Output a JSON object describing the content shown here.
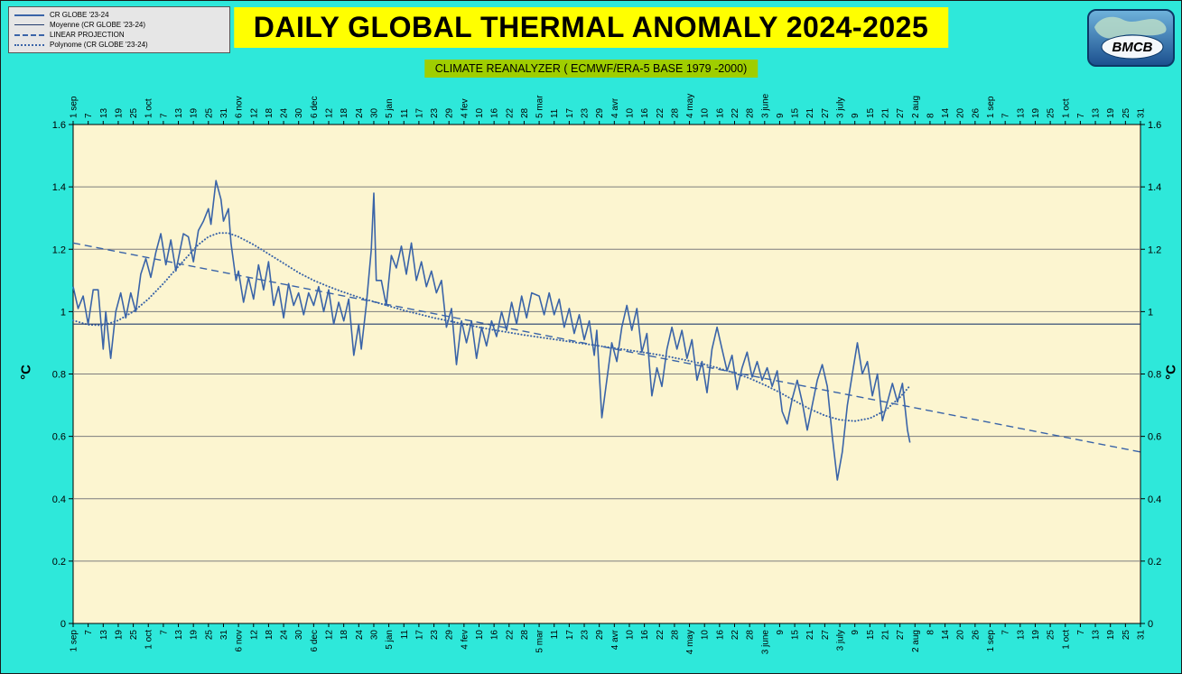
{
  "logo": {
    "text": "BMCB"
  },
  "colors": {
    "page_bg": "#2EE8DA",
    "plot_bg": "#FCF5D0",
    "title_bg": "#FFFF00",
    "subtitle_bg": "#9FCE00",
    "legend_bg": "#E6E6E6",
    "line_blue": "#3A64A8",
    "mean_blue": "#223C6E",
    "grid_gray": "#7D7D7D"
  },
  "chart_data": {
    "type": "line",
    "title": "DAILY GLOBAL THERMAL ANOMALY 2024-2025",
    "subtitle": "CLIMATE REANALYZER ( ECMWF/ERA-5 BASE 1979 -2000)",
    "ylabel_left": "°C",
    "ylabel_right": "°C",
    "ylim": [
      0,
      1.6
    ],
    "ytick_step": 0.2,
    "ytick_labels": [
      "0",
      "0.2",
      "0.4",
      "0.6",
      "0.8",
      "1",
      "1.2",
      "1.4",
      "1.6"
    ],
    "grid": "horizontal-only",
    "legend_position": "top-left",
    "plot_bg": "#FCF5D0",
    "x_unit": "days, 6 days per tick starting 1 sep",
    "xlim_days": [
      0,
      426
    ],
    "xtick_spacing_days": 6,
    "xtick_labels": [
      "1 sep",
      "7",
      "13",
      "19",
      "25",
      "1 oct",
      "7",
      "13",
      "19",
      "25",
      "31",
      "6 nov",
      "12",
      "18",
      "24",
      "30",
      "6 dec",
      "12",
      "18",
      "24",
      "30",
      "5 jan",
      "11",
      "17",
      "23",
      "29",
      "4 fev",
      "10",
      "16",
      "22",
      "28",
      "5 mar",
      "11",
      "17",
      "23",
      "29",
      "4 avr",
      "10",
      "16",
      "22",
      "28",
      "4 may",
      "10",
      "16",
      "22",
      "28",
      "3 june",
      "9",
      "15",
      "21",
      "27",
      "3 july",
      "9",
      "15",
      "21",
      "27",
      "2 aug",
      "8",
      "14",
      "20",
      "26",
      "1 sep",
      "7",
      "13",
      "19",
      "25",
      "1 oct",
      "7",
      "13",
      "19",
      "25",
      "31"
    ],
    "series": [
      {
        "name": "CR GLOBE '23-24",
        "style": "solid",
        "color": "#3A64A8",
        "width": 1.6,
        "points": [
          [
            0,
            1.08
          ],
          [
            2,
            1.01
          ],
          [
            4,
            1.05
          ],
          [
            6,
            0.96
          ],
          [
            8,
            1.07
          ],
          [
            10,
            1.07
          ],
          [
            12,
            0.88
          ],
          [
            13,
            1.0
          ],
          [
            15,
            0.85
          ],
          [
            17,
            1.0
          ],
          [
            19,
            1.06
          ],
          [
            21,
            0.98
          ],
          [
            23,
            1.06
          ],
          [
            25,
            1.0
          ],
          [
            27,
            1.12
          ],
          [
            29,
            1.17
          ],
          [
            31,
            1.11
          ],
          [
            33,
            1.19
          ],
          [
            35,
            1.25
          ],
          [
            37,
            1.15
          ],
          [
            39,
            1.23
          ],
          [
            41,
            1.13
          ],
          [
            44,
            1.25
          ],
          [
            46,
            1.24
          ],
          [
            48,
            1.16
          ],
          [
            50,
            1.26
          ],
          [
            52,
            1.29
          ],
          [
            54,
            1.33
          ],
          [
            55,
            1.28
          ],
          [
            57,
            1.42
          ],
          [
            59,
            1.36
          ],
          [
            60,
            1.29
          ],
          [
            62,
            1.33
          ],
          [
            63,
            1.22
          ],
          [
            65,
            1.1
          ],
          [
            66,
            1.13
          ],
          [
            68,
            1.03
          ],
          [
            70,
            1.11
          ],
          [
            72,
            1.04
          ],
          [
            74,
            1.15
          ],
          [
            76,
            1.07
          ],
          [
            78,
            1.16
          ],
          [
            80,
            1.02
          ],
          [
            82,
            1.08
          ],
          [
            84,
            0.98
          ],
          [
            86,
            1.09
          ],
          [
            88,
            1.02
          ],
          [
            90,
            1.06
          ],
          [
            92,
            0.99
          ],
          [
            94,
            1.06
          ],
          [
            96,
            1.02
          ],
          [
            98,
            1.08
          ],
          [
            100,
            1.0
          ],
          [
            102,
            1.07
          ],
          [
            104,
            0.96
          ],
          [
            106,
            1.03
          ],
          [
            108,
            0.97
          ],
          [
            110,
            1.04
          ],
          [
            112,
            0.86
          ],
          [
            114,
            0.96
          ],
          [
            115,
            0.88
          ],
          [
            117,
            1.02
          ],
          [
            119,
            1.2
          ],
          [
            120,
            1.38
          ],
          [
            121,
            1.1
          ],
          [
            123,
            1.1
          ],
          [
            125,
            1.02
          ],
          [
            127,
            1.18
          ],
          [
            129,
            1.14
          ],
          [
            131,
            1.21
          ],
          [
            133,
            1.12
          ],
          [
            135,
            1.22
          ],
          [
            137,
            1.1
          ],
          [
            139,
            1.16
          ],
          [
            141,
            1.08
          ],
          [
            143,
            1.13
          ],
          [
            145,
            1.06
          ],
          [
            147,
            1.1
          ],
          [
            149,
            0.95
          ],
          [
            151,
            1.01
          ],
          [
            153,
            0.83
          ],
          [
            155,
            0.97
          ],
          [
            157,
            0.9
          ],
          [
            159,
            0.97
          ],
          [
            161,
            0.85
          ],
          [
            163,
            0.95
          ],
          [
            165,
            0.89
          ],
          [
            167,
            0.97
          ],
          [
            169,
            0.92
          ],
          [
            171,
            1.0
          ],
          [
            173,
            0.94
          ],
          [
            175,
            1.03
          ],
          [
            177,
            0.96
          ],
          [
            179,
            1.05
          ],
          [
            181,
            0.98
          ],
          [
            183,
            1.06
          ],
          [
            186,
            1.05
          ],
          [
            188,
            0.99
          ],
          [
            190,
            1.06
          ],
          [
            192,
            0.99
          ],
          [
            194,
            1.04
          ],
          [
            196,
            0.95
          ],
          [
            198,
            1.01
          ],
          [
            200,
            0.93
          ],
          [
            202,
            0.99
          ],
          [
            204,
            0.91
          ],
          [
            206,
            0.97
          ],
          [
            208,
            0.86
          ],
          [
            209,
            0.94
          ],
          [
            211,
            0.66
          ],
          [
            213,
            0.78
          ],
          [
            215,
            0.9
          ],
          [
            217,
            0.84
          ],
          [
            219,
            0.95
          ],
          [
            221,
            1.02
          ],
          [
            223,
            0.94
          ],
          [
            225,
            1.01
          ],
          [
            227,
            0.87
          ],
          [
            229,
            0.93
          ],
          [
            231,
            0.73
          ],
          [
            233,
            0.82
          ],
          [
            235,
            0.76
          ],
          [
            237,
            0.88
          ],
          [
            239,
            0.95
          ],
          [
            241,
            0.88
          ],
          [
            243,
            0.94
          ],
          [
            245,
            0.85
          ],
          [
            247,
            0.91
          ],
          [
            249,
            0.78
          ],
          [
            251,
            0.84
          ],
          [
            253,
            0.74
          ],
          [
            255,
            0.88
          ],
          [
            257,
            0.95
          ],
          [
            259,
            0.88
          ],
          [
            261,
            0.81
          ],
          [
            263,
            0.86
          ],
          [
            265,
            0.75
          ],
          [
            267,
            0.82
          ],
          [
            269,
            0.87
          ],
          [
            271,
            0.79
          ],
          [
            273,
            0.84
          ],
          [
            275,
            0.78
          ],
          [
            277,
            0.82
          ],
          [
            279,
            0.76
          ],
          [
            281,
            0.81
          ],
          [
            283,
            0.68
          ],
          [
            285,
            0.64
          ],
          [
            287,
            0.72
          ],
          [
            289,
            0.78
          ],
          [
            291,
            0.71
          ],
          [
            293,
            0.62
          ],
          [
            295,
            0.7
          ],
          [
            297,
            0.78
          ],
          [
            299,
            0.83
          ],
          [
            301,
            0.76
          ],
          [
            303,
            0.6
          ],
          [
            305,
            0.46
          ],
          [
            307,
            0.55
          ],
          [
            309,
            0.7
          ],
          [
            311,
            0.8
          ],
          [
            313,
            0.9
          ],
          [
            315,
            0.8
          ],
          [
            317,
            0.84
          ],
          [
            319,
            0.73
          ],
          [
            321,
            0.8
          ],
          [
            323,
            0.65
          ],
          [
            325,
            0.71
          ],
          [
            327,
            0.77
          ],
          [
            329,
            0.71
          ],
          [
            331,
            0.77
          ],
          [
            333,
            0.62
          ],
          [
            334,
            0.58
          ]
        ]
      },
      {
        "name": "Moyenne (CR GLOBE '23-24)",
        "style": "solid",
        "color": "#223C6E",
        "width": 1.2,
        "points": [
          [
            0,
            0.96
          ],
          [
            426,
            0.96
          ]
        ]
      },
      {
        "name": "LINEAR PROJECTION",
        "style": "dashed",
        "color": "#3A64A8",
        "width": 1.4,
        "points": [
          [
            0,
            1.22
          ],
          [
            426,
            0.55
          ]
        ]
      },
      {
        "name": "Polynome (CR GLOBE '23-24)",
        "style": "dotted",
        "color": "#3A64A8",
        "width": 2,
        "points": [
          [
            0,
            0.972
          ],
          [
            6,
            0.958
          ],
          [
            12,
            0.956
          ],
          [
            18,
            0.972
          ],
          [
            24,
            1.0
          ],
          [
            30,
            1.04
          ],
          [
            36,
            1.09
          ],
          [
            42,
            1.145
          ],
          [
            46,
            1.18
          ],
          [
            50,
            1.215
          ],
          [
            54,
            1.24
          ],
          [
            58,
            1.252
          ],
          [
            62,
            1.252
          ],
          [
            66,
            1.24
          ],
          [
            72,
            1.215
          ],
          [
            78,
            1.185
          ],
          [
            84,
            1.155
          ],
          [
            90,
            1.125
          ],
          [
            96,
            1.1
          ],
          [
            102,
            1.08
          ],
          [
            108,
            1.062
          ],
          [
            114,
            1.046
          ],
          [
            120,
            1.032
          ],
          [
            126,
            1.018
          ],
          [
            132,
            1.004
          ],
          [
            138,
            0.992
          ],
          [
            144,
            0.98
          ],
          [
            150,
            0.97
          ],
          [
            156,
            0.96
          ],
          [
            162,
            0.95
          ],
          [
            168,
            0.941
          ],
          [
            174,
            0.933
          ],
          [
            180,
            0.925
          ],
          [
            186,
            0.918
          ],
          [
            192,
            0.911
          ],
          [
            198,
            0.904
          ],
          [
            204,
            0.897
          ],
          [
            210,
            0.89
          ],
          [
            216,
            0.883
          ],
          [
            222,
            0.876
          ],
          [
            228,
            0.869
          ],
          [
            234,
            0.861
          ],
          [
            240,
            0.852
          ],
          [
            246,
            0.842
          ],
          [
            252,
            0.831
          ],
          [
            258,
            0.818
          ],
          [
            264,
            0.803
          ],
          [
            270,
            0.786
          ],
          [
            276,
            0.765
          ],
          [
            282,
            0.741
          ],
          [
            288,
            0.714
          ],
          [
            294,
            0.688
          ],
          [
            300,
            0.667
          ],
          [
            306,
            0.653
          ],
          [
            312,
            0.649
          ],
          [
            318,
            0.658
          ],
          [
            324,
            0.682
          ],
          [
            330,
            0.725
          ],
          [
            334,
            0.762
          ]
        ]
      }
    ]
  }
}
